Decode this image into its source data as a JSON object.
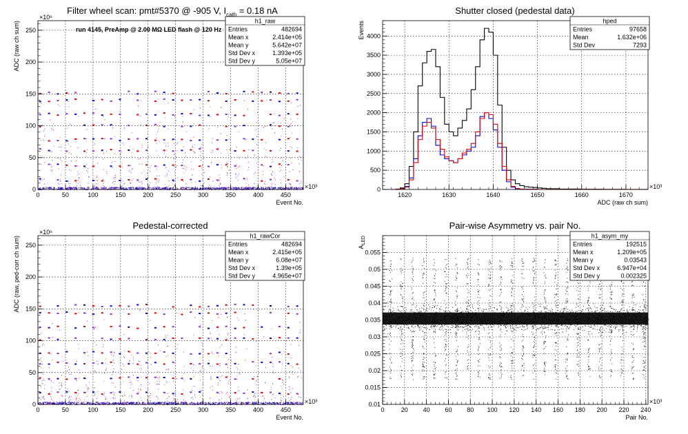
{
  "chart_data": [
    {
      "type": "scatter",
      "id": "raw",
      "title": "Filter wheel scan: pmt#5370 @  -905 V, I",
      "title_sub": "cath",
      "title_tail": " = 0.18 nA",
      "annotation": "run 4145, PreAmp @ 2.00 MΩ LED flash @  120 Hz",
      "xlabel": "Event No.",
      "ylabel": "ADC (raw ch sum)",
      "x_multiplier": "×10³",
      "y_multiplier": "×10⁶",
      "xlim": [
        0,
        482
      ],
      "ylim": [
        0,
        265
      ],
      "xticks": [
        0,
        50,
        100,
        150,
        200,
        250,
        300,
        350,
        400,
        450
      ],
      "yticks": [
        0,
        50,
        100,
        150,
        200,
        250
      ],
      "colors": {
        "red": "#e00000",
        "blue": "#0000dd",
        "purple": "#8a2be2"
      },
      "stats": {
        "name": "h1_raw",
        "rows": [
          {
            "label": "Entries",
            "value": "482694"
          },
          {
            "label": "Mean x",
            "value": "2.414e+05"
          },
          {
            "label": "Mean y",
            "value": "5.642e+07"
          },
          {
            "label": "Std Dev x",
            "value": "1.393e+05"
          },
          {
            "label": "Std Dev y",
            "value": "5.05e+07"
          }
        ]
      }
    },
    {
      "type": "line",
      "id": "ped",
      "title": "Shutter closed (pedestal data)",
      "xlabel": "ADC (raw ch sum)",
      "ylabel": "Events",
      "x_multiplier": "×10³",
      "xlim": [
        1615,
        1675
      ],
      "ylim": [
        0,
        4400
      ],
      "xticks": [
        1620,
        1630,
        1640,
        1650,
        1660,
        1670
      ],
      "yticks": [
        0,
        500,
        1000,
        1500,
        2000,
        2500,
        3000,
        3500,
        4000
      ],
      "series": [
        {
          "color": "#000000",
          "x": [
            1617,
            1618,
            1619,
            1620,
            1621,
            1622,
            1623,
            1624,
            1625,
            1626,
            1627,
            1628,
            1629,
            1630,
            1631,
            1632,
            1633,
            1634,
            1635,
            1636,
            1637,
            1638,
            1639,
            1640,
            1641,
            1642,
            1643,
            1644,
            1645,
            1646,
            1647,
            1648,
            1649,
            1650,
            1651,
            1652,
            1655,
            1660,
            1665,
            1670,
            1675
          ],
          "values": [
            0,
            10,
            40,
            150,
            600,
            1500,
            2700,
            3300,
            3600,
            3650,
            3200,
            2400,
            1700,
            1500,
            1400,
            1600,
            1800,
            2100,
            2600,
            3200,
            3900,
            4200,
            4100,
            3500,
            2200,
            1100,
            500,
            250,
            150,
            100,
            70,
            60,
            50,
            40,
            30,
            20,
            10,
            5,
            3,
            2,
            0
          ]
        },
        {
          "color": "#0000dd",
          "x": [
            1617,
            1618,
            1619,
            1620,
            1621,
            1622,
            1623,
            1624,
            1625,
            1626,
            1627,
            1628,
            1629,
            1630,
            1631,
            1632,
            1633,
            1634,
            1635,
            1636,
            1637,
            1638,
            1639,
            1640,
            1641,
            1642,
            1643,
            1644,
            1645,
            1646,
            1650,
            1660,
            1675
          ],
          "values": [
            0,
            5,
            20,
            80,
            300,
            800,
            1400,
            1750,
            1850,
            1650,
            1150,
            900,
            800,
            750,
            700,
            800,
            900,
            1000,
            1100,
            1400,
            1900,
            2000,
            1850,
            1550,
            1100,
            500,
            200,
            60,
            20,
            5,
            0,
            0,
            0
          ]
        },
        {
          "color": "#e00000",
          "x": [
            1617,
            1618,
            1619,
            1620,
            1621,
            1622,
            1623,
            1624,
            1625,
            1626,
            1627,
            1628,
            1629,
            1630,
            1631,
            1632,
            1633,
            1634,
            1635,
            1636,
            1637,
            1638,
            1639,
            1640,
            1641,
            1642,
            1643,
            1644,
            1645,
            1646,
            1650,
            1660,
            1675
          ],
          "values": [
            0,
            5,
            15,
            60,
            250,
            700,
            1300,
            1650,
            1750,
            1600,
            1300,
            1050,
            850,
            750,
            700,
            800,
            950,
            1050,
            1200,
            1500,
            1850,
            2000,
            1950,
            1700,
            1200,
            600,
            250,
            80,
            25,
            5,
            0,
            0,
            0
          ]
        }
      ],
      "stats": {
        "name": "hped",
        "rows": [
          {
            "label": "Entries",
            "value": "97658"
          },
          {
            "label": "Mean",
            "value": "1.632e+06"
          },
          {
            "label": "Std Dev",
            "value": "7293"
          }
        ]
      }
    },
    {
      "type": "scatter",
      "id": "cor",
      "title": "Pedestal-corrected",
      "xlabel": "Event No.",
      "ylabel": "ADC (raw, ped-corr ch sum)",
      "x_multiplier": "×10³",
      "y_multiplier": "×10⁶",
      "xlim": [
        0,
        482
      ],
      "ylim": [
        0,
        265
      ],
      "xticks": [
        0,
        50,
        100,
        150,
        200,
        250,
        300,
        350,
        400,
        450
      ],
      "yticks": [
        0,
        50,
        100,
        150,
        200,
        250
      ],
      "stats": {
        "name": "h1_rawCor",
        "rows": [
          {
            "label": "Entries",
            "value": "482694"
          },
          {
            "label": "Mean x",
            "value": "2.415e+05"
          },
          {
            "label": "Mean y",
            "value": "6.08e+07"
          },
          {
            "label": "Std Dev x",
            "value": "1.39e+05"
          },
          {
            "label": "Std Dev y",
            "value": "4.965e+07"
          }
        ]
      }
    },
    {
      "type": "scatter",
      "id": "asym",
      "title": "Pair-wise Asymmetry vs. pair No.",
      "xlabel": "Pair No.",
      "ylabel": "A",
      "ylabel_sub": "LED",
      "x_multiplier": "×10³",
      "xlim": [
        0,
        242
      ],
      "ylim": [
        0.01,
        0.06
      ],
      "xticks": [
        0,
        20,
        40,
        60,
        80,
        100,
        120,
        140,
        160,
        180,
        200,
        220,
        240
      ],
      "yticks": [
        0.01,
        0.015,
        0.02,
        0.025,
        0.03,
        0.035,
        0.04,
        0.045,
        0.05,
        0.055
      ],
      "ytick_labels": [
        "0.01",
        "0.015",
        "0.02",
        "0.025",
        "0.03",
        "0.035",
        "0.04",
        "0.045",
        "0.05",
        "0.055"
      ],
      "band_center": 0.03543,
      "stats": {
        "name": "h1_asym_my",
        "rows": [
          {
            "label": "Entries",
            "value": "192515"
          },
          {
            "label": "Mean x",
            "value": "1.209e+05"
          },
          {
            "label": "Mean y",
            "value": "0.03543"
          },
          {
            "label": "Std Dev x",
            "value": "6.947e+04"
          },
          {
            "label": "Std Dev y",
            "value": "0.002325"
          }
        ]
      }
    }
  ]
}
